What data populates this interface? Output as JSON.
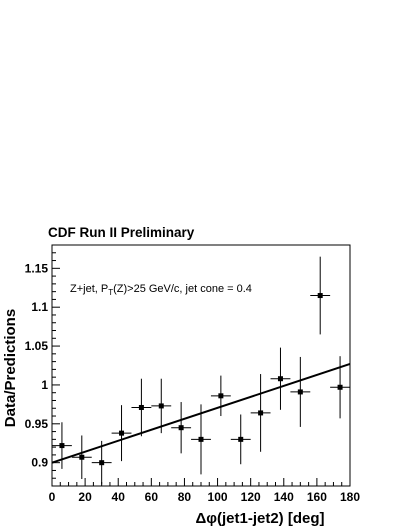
{
  "chart_data": {
    "type": "scatter",
    "header": "CDF Run II Preliminary",
    "annotation": {
      "pre": "Z+jet, P",
      "sub": "T",
      "post": "(Z)>25 GeV/c, jet cone = 0.4"
    },
    "xlabel": "Δφ(jet1-jet2) [deg]",
    "ylabel": "Data/Predictions",
    "xlim": [
      0,
      180
    ],
    "ylim": [
      0.87,
      1.18
    ],
    "x_ticks": [
      0,
      20,
      40,
      60,
      80,
      100,
      120,
      140,
      160,
      180
    ],
    "y_ticks": [
      0.9,
      0.95,
      1,
      1.05,
      1.1,
      1.15
    ],
    "x_tick_labels": [
      "0",
      "20",
      "40",
      "60",
      "80",
      "100",
      "120",
      "140",
      "160",
      "180"
    ],
    "y_tick_labels": [
      "0.9",
      "0.95",
      "1",
      "1.05",
      "1.1",
      "1.15"
    ],
    "points": [
      {
        "x": 6,
        "y": 0.922,
        "xerr": 6,
        "yerr": 0.03
      },
      {
        "x": 18,
        "y": 0.907,
        "xerr": 6,
        "yerr": 0.028
      },
      {
        "x": 30,
        "y": 0.9,
        "xerr": 6,
        "yerr": 0.028
      },
      {
        "x": 42,
        "y": 0.938,
        "xerr": 6,
        "yerr": 0.036
      },
      {
        "x": 54,
        "y": 0.971,
        "xerr": 6,
        "yerr": 0.037
      },
      {
        "x": 66,
        "y": 0.973,
        "xerr": 6,
        "yerr": 0.035
      },
      {
        "x": 78,
        "y": 0.945,
        "xerr": 6,
        "yerr": 0.033
      },
      {
        "x": 90,
        "y": 0.93,
        "xerr": 6,
        "yerr": 0.045
      },
      {
        "x": 102,
        "y": 0.986,
        "xerr": 6,
        "yerr": 0.026
      },
      {
        "x": 114,
        "y": 0.93,
        "xerr": 6,
        "yerr": 0.032
      },
      {
        "x": 126,
        "y": 0.964,
        "xerr": 6,
        "yerr": 0.05
      },
      {
        "x": 138,
        "y": 1.008,
        "xerr": 6,
        "yerr": 0.04
      },
      {
        "x": 150,
        "y": 0.991,
        "xerr": 6,
        "yerr": 0.045
      },
      {
        "x": 162,
        "y": 1.115,
        "xerr": 6,
        "yerr": 0.05
      },
      {
        "x": 174,
        "y": 0.997,
        "xerr": 6,
        "yerr": 0.04
      }
    ],
    "fit_line": {
      "x": [
        0,
        180
      ],
      "y": [
        0.9,
        1.027
      ]
    },
    "grid": false,
    "legend": "none"
  }
}
